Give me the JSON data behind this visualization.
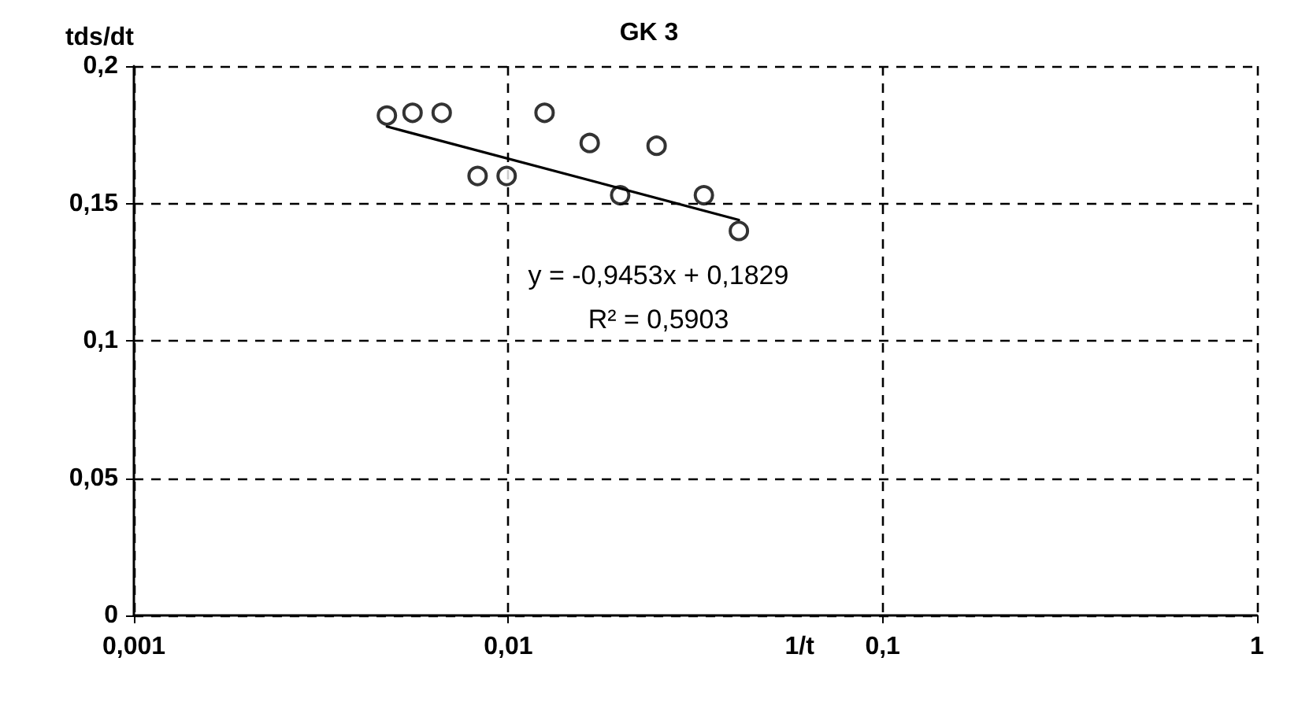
{
  "chart_data": {
    "type": "scatter",
    "title": "GK 3",
    "xlabel": "1/t",
    "ylabel": "tds/dt",
    "log": "x",
    "grid": true,
    "marker": "circle",
    "xlim": [
      0.001,
      1
    ],
    "xticks": [
      {
        "value": 0.001,
        "label": "0,001"
      },
      {
        "value": 0.01,
        "label": "0,01"
      },
      {
        "value": 0.1,
        "label": "0,1"
      },
      {
        "value": 1,
        "label": "1"
      }
    ],
    "ylim": [
      0,
      0.2
    ],
    "yticks": [
      {
        "value": 0,
        "label": "0"
      },
      {
        "value": 0.05,
        "label": "0,05"
      },
      {
        "value": 0.1,
        "label": "0,1"
      },
      {
        "value": 0.15,
        "label": "0,15"
      },
      {
        "value": 0.2,
        "label": "0,2"
      }
    ],
    "series": [
      {
        "type": "scatter",
        "color": "#000000",
        "x": [
          0.00474,
          0.00555,
          0.00664,
          0.00828,
          0.0099,
          0.0125,
          0.0165,
          0.0199,
          0.0249,
          0.0333,
          0.0413
        ],
        "values": [
          0.182,
          0.183,
          0.183,
          0.16,
          0.16,
          0.183,
          0.172,
          0.153,
          0.171,
          0.153,
          0.14
        ]
      },
      {
        "type": "line",
        "color": "#000000",
        "marker": "none",
        "line_style": "solid",
        "x": [
          0.00474,
          0.0413
        ],
        "values": [
          0.178,
          0.144
        ]
      }
    ],
    "annotations": [
      "y = -0,9453x + 0,1829",
      "R² = 0,5903"
    ]
  }
}
